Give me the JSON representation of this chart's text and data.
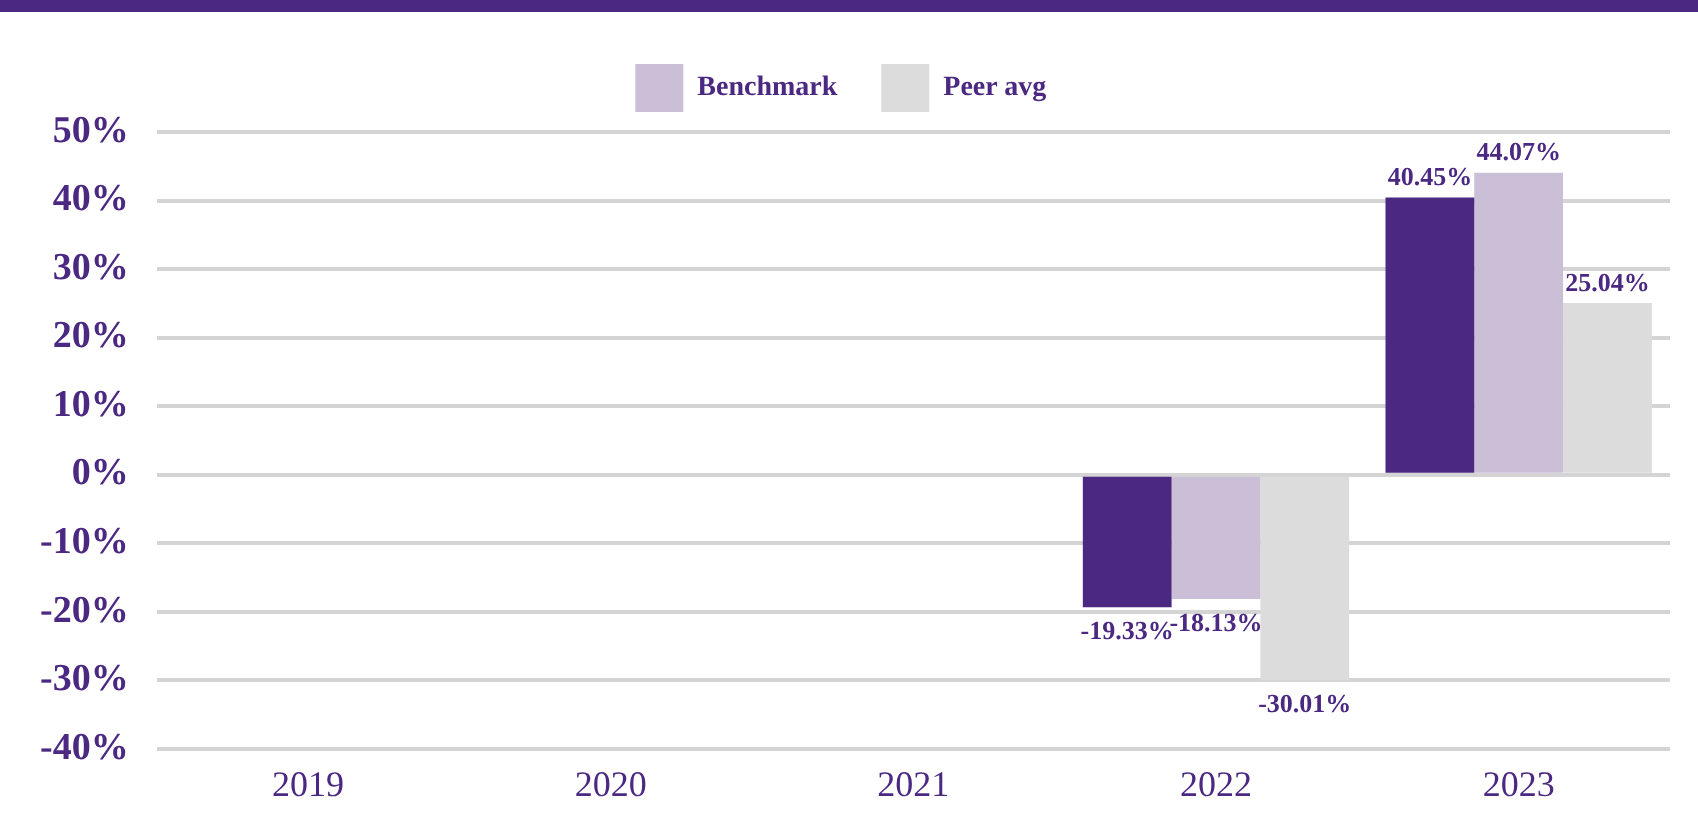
{
  "chart_data": {
    "type": "bar",
    "categories": [
      "2019",
      "2020",
      "2021",
      "2022",
      "2023"
    ],
    "series": [
      {
        "color": "#4b2882",
        "values": [
          null,
          null,
          null,
          -19.33,
          40.45
        ],
        "value_labels": [
          null,
          null,
          null,
          "-19.33%",
          "40.45%"
        ]
      },
      {
        "name": "Benchmark",
        "color": "#cbbfd8",
        "values": [
          null,
          null,
          null,
          -18.13,
          44.07
        ],
        "value_labels": [
          null,
          null,
          null,
          "-18.13%",
          "44.07%"
        ]
      },
      {
        "name": "Peer avg",
        "color": "#dcdcdc",
        "values": [
          null,
          null,
          null,
          -30.01,
          25.04
        ],
        "value_labels": [
          null,
          null,
          null,
          "-30.01%",
          "25.04%"
        ]
      }
    ],
    "ylim": [
      -40,
      50
    ],
    "yticks": [
      {
        "value": -40,
        "label": "-40%"
      },
      {
        "value": -30,
        "label": "-30%"
      },
      {
        "value": -20,
        "label": "-20%"
      },
      {
        "value": -10,
        "label": "-10%"
      },
      {
        "value": 0,
        "label": "0%"
      },
      {
        "value": 10,
        "label": "10%"
      },
      {
        "value": 20,
        "label": "20%"
      },
      {
        "value": 30,
        "label": "30%"
      },
      {
        "value": 40,
        "label": "40%"
      },
      {
        "value": 50,
        "label": "50%"
      }
    ],
    "grid": "y",
    "legend": "top"
  }
}
